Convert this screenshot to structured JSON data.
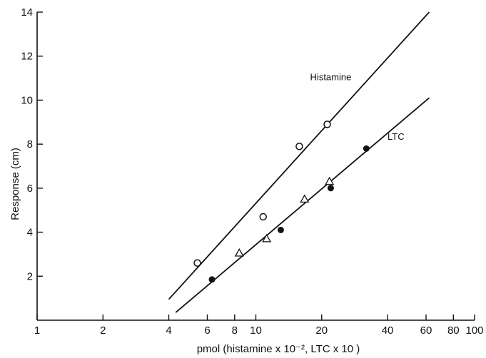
{
  "chart_data": {
    "type": "scatter",
    "title": "",
    "xlabel": "pmol  (histamine x 10⁻², LTC x 10 )",
    "ylabel": "Response (cm)",
    "xscale": "log",
    "xlim": [
      1,
      100
    ],
    "ylim": [
      0,
      14
    ],
    "x_ticks": [
      1,
      2,
      4,
      6,
      8,
      10,
      20,
      40,
      60,
      80,
      100
    ],
    "y_ticks": [
      2,
      4,
      6,
      8,
      10,
      12,
      14
    ],
    "grid": false,
    "legend": "none",
    "series": [
      {
        "name": "Histamine",
        "marker": "open-circle",
        "points": [
          [
            5.4,
            2.6
          ],
          [
            10.8,
            4.7
          ],
          [
            15.8,
            7.9
          ],
          [
            21.2,
            8.9
          ]
        ],
        "fit_line": [
          [
            4.0,
            0.95
          ],
          [
            62.0,
            14.0
          ]
        ]
      },
      {
        "name": "LTC",
        "marker": "filled-circle",
        "points": [
          [
            6.3,
            1.85
          ],
          [
            13.0,
            4.1
          ],
          [
            22.0,
            6.0
          ],
          [
            32.0,
            7.8
          ]
        ]
      },
      {
        "name": "",
        "marker": "open-triangle",
        "points": [
          [
            8.4,
            3.05
          ],
          [
            11.2,
            3.7
          ],
          [
            16.7,
            5.5
          ],
          [
            21.7,
            6.3
          ]
        ]
      }
    ],
    "ltc_fit_line": [
      [
        4.3,
        0.35
      ],
      [
        62.0,
        10.1
      ]
    ]
  }
}
